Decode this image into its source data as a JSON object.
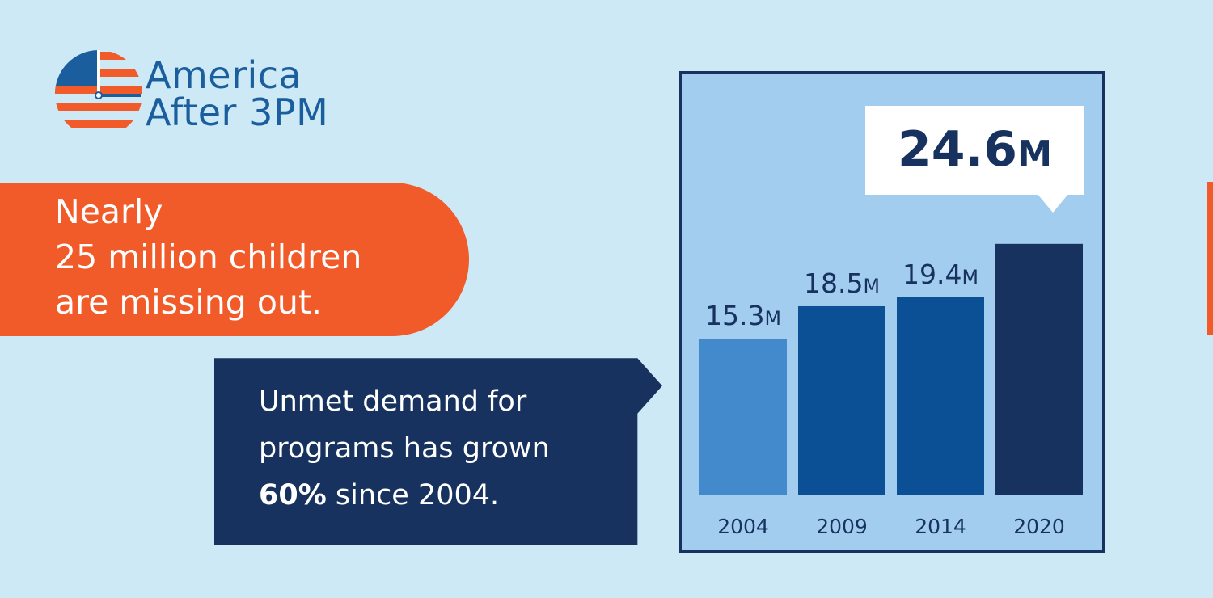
{
  "logo": {
    "line1": "America",
    "line2": "After 3PM",
    "colors": {
      "blue": "#1b5e9e",
      "red": "#f15a29"
    }
  },
  "headline": {
    "line1": "Nearly",
    "line2": "25 million children",
    "line3": "are missing out."
  },
  "callout": {
    "line1": "Unmet demand for",
    "line2": "programs has grown",
    "line3_bold": "60%",
    "line3_rest": " since 2004."
  },
  "chart_data": {
    "type": "bar",
    "categories": [
      "2004",
      "2009",
      "2014",
      "2020"
    ],
    "values": [
      15.3,
      18.5,
      19.4,
      24.6
    ],
    "value_labels": [
      "15.3",
      "18.5",
      "19.4",
      "24.6"
    ],
    "unit": "M",
    "colors": [
      "#428acb",
      "#0b4f94",
      "#0b4f94",
      "#17325e"
    ],
    "highlight_index": 3,
    "ylim": [
      0,
      25
    ]
  },
  "theme": {
    "background": "#cce9f5",
    "chart_background": "#a3cdef",
    "navy": "#17325e",
    "orange": "#f15a29"
  }
}
